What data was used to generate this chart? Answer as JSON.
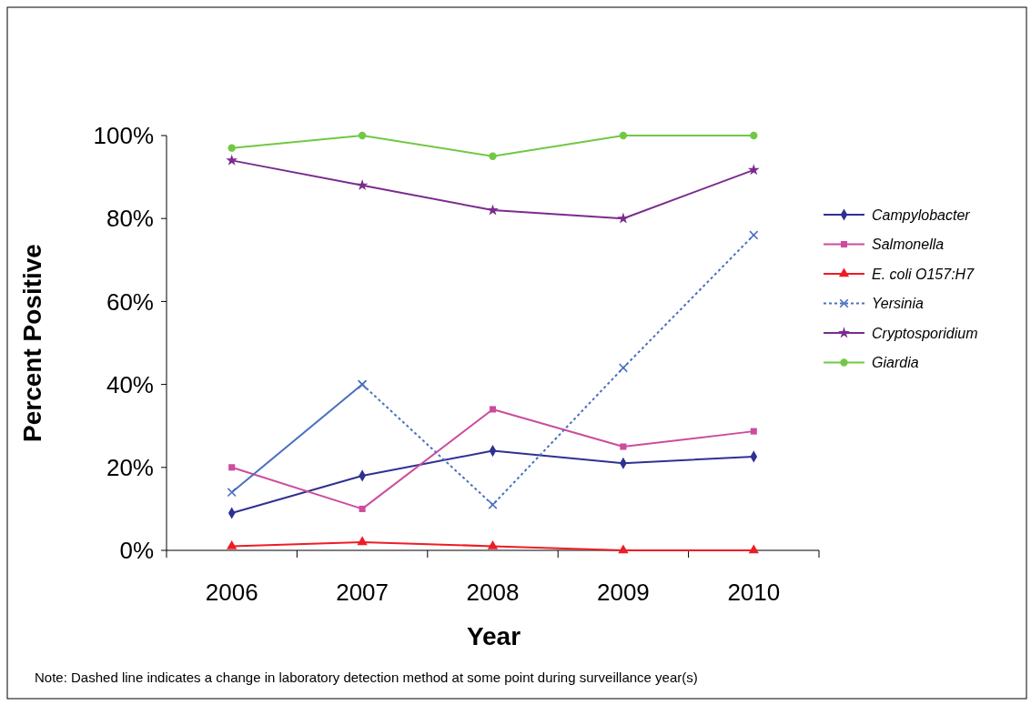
{
  "chart_data": {
    "type": "line",
    "xlabel": "Year",
    "ylabel": "Percent Positive",
    "categories": [
      "2006",
      "2007",
      "2008",
      "2009",
      "2010"
    ],
    "ylim": [
      0,
      100
    ],
    "yticks": [
      {
        "value": 0,
        "label": "0%"
      },
      {
        "value": 20,
        "label": "20%"
      },
      {
        "value": 40,
        "label": "40%"
      },
      {
        "value": 60,
        "label": "60%"
      },
      {
        "value": 80,
        "label": "80%"
      },
      {
        "value": 100,
        "label": "100%"
      }
    ],
    "grid": false,
    "legend": "right",
    "series": [
      {
        "name": "Campylobacter",
        "color": "#2e3192",
        "marker": "diamond",
        "line_style": "solid",
        "values": [
          9,
          18,
          24,
          21,
          22.6
        ]
      },
      {
        "name": "Salmonella",
        "color": "#cc4c9e",
        "marker": "square",
        "line_style": "solid",
        "values": [
          20,
          10,
          34,
          25,
          28.7
        ]
      },
      {
        "name": "E. coli O157:H7",
        "color": "#ee1c24",
        "marker": "triangle",
        "line_style": "solid",
        "values": [
          1,
          2,
          1,
          0,
          0
        ]
      },
      {
        "color": "#4a6fbf",
        "marker": "cross",
        "line_style": "solid",
        "values": [
          14,
          40,
          null,
          null,
          null
        ]
      },
      {
        "name": "Yersinia",
        "color": "#4a6fbf",
        "marker": "cross",
        "line_style": "dashed",
        "values": [
          null,
          40,
          11,
          44,
          76
        ]
      },
      {
        "name": "Cryptosporidium",
        "color": "#7b2c8e",
        "marker": "star",
        "line_style": "solid",
        "values": [
          94,
          88,
          82,
          80,
          91.7
        ]
      },
      {
        "name": "Giardia",
        "color": "#72c844",
        "marker": "circle",
        "line_style": "solid",
        "values": [
          97,
          100,
          95,
          100,
          100
        ]
      }
    ],
    "annotations": [
      "Note: Dashed line indicates a change in laboratory detection method at some point during surveillance year(s)"
    ]
  }
}
